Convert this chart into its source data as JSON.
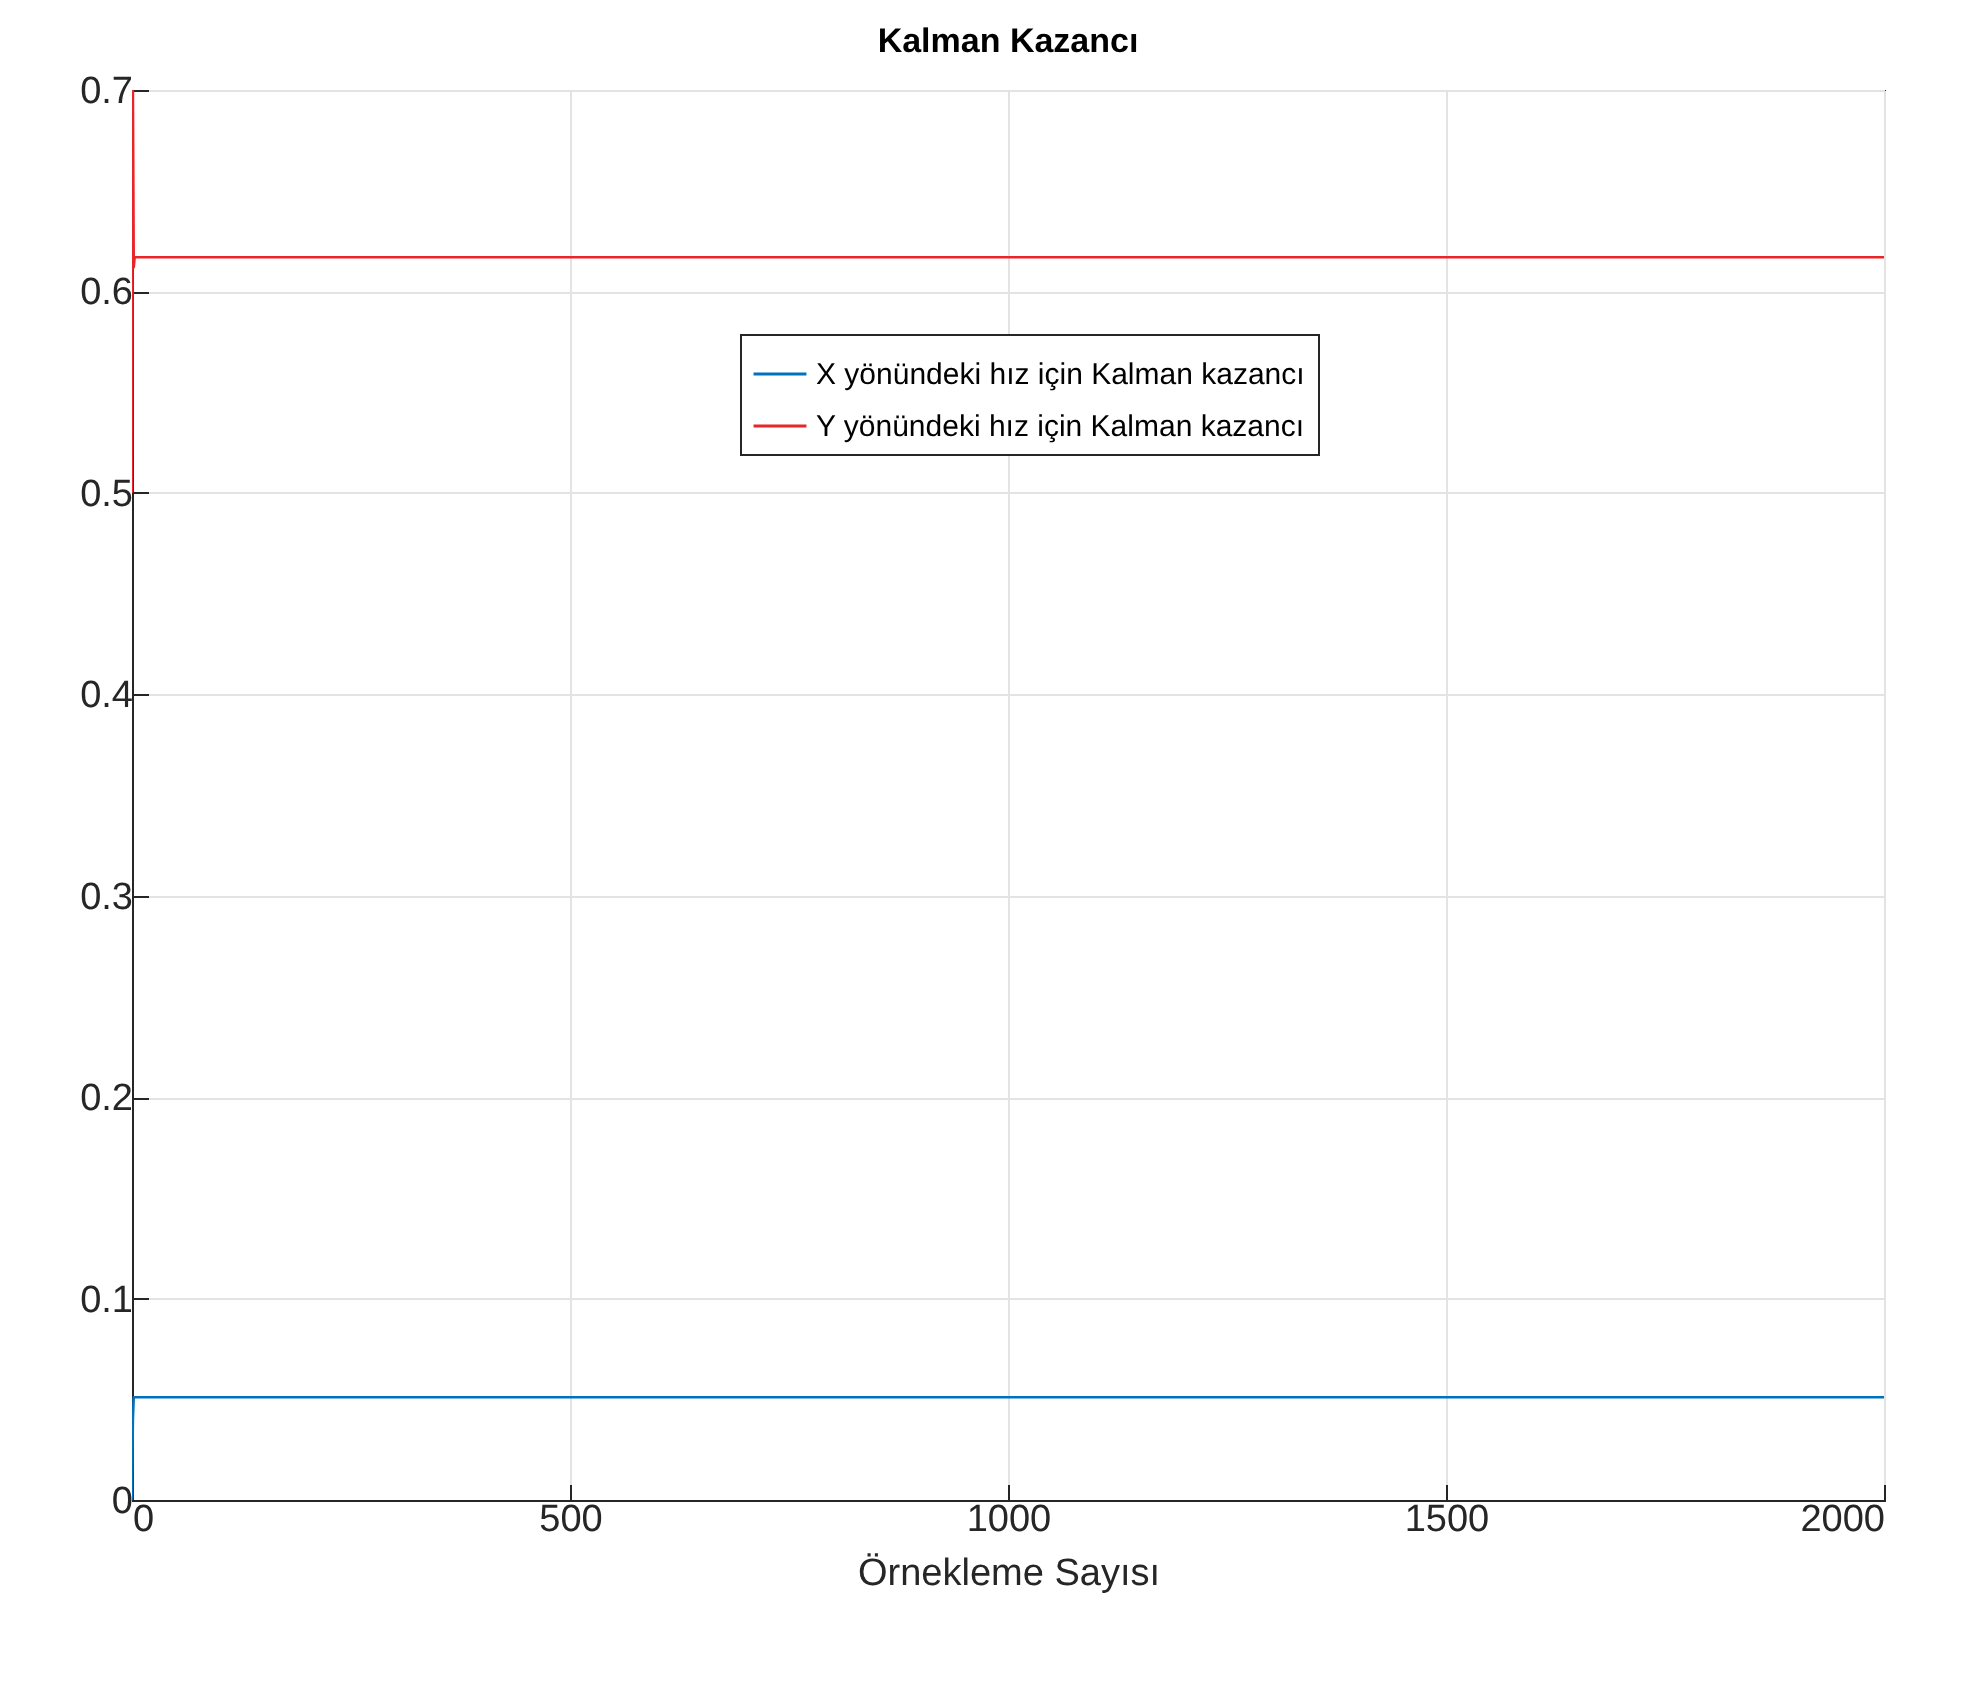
{
  "chart_data": {
    "type": "line",
    "title": "Kalman Kazancı",
    "xlabel": "Örnekleme Sayısı",
    "xlim": [
      0,
      2000
    ],
    "xticks": [
      0,
      500,
      1000,
      1500,
      2000
    ],
    "ylim": [
      0,
      0.7
    ],
    "yticks": [
      0,
      0.1,
      0.2,
      0.3,
      0.4,
      0.5,
      0.6,
      0.7
    ],
    "grid": true,
    "legend": "top right",
    "series": [
      {
        "name": "X yönündeki hız için Kalman kazancı",
        "color": "#0072bd",
        "x": [
          0,
          1,
          2,
          2000
        ],
        "values": [
          0,
          0.04,
          0.051,
          0.051
        ]
      },
      {
        "name": "Y yönündeki hız için Kalman kazancı",
        "color": "#e8262a",
        "x": [
          0,
          1,
          2,
          3,
          2000
        ],
        "values": [
          0.5,
          0.7,
          0.612,
          0.617,
          0.617
        ]
      }
    ]
  }
}
